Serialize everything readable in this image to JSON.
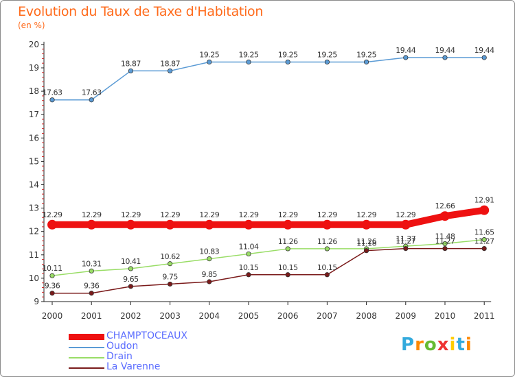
{
  "chart_data": {
    "type": "line",
    "title": "Evolution du Taux de Taxe d'Habitation",
    "ylabel": "(en %)",
    "xlabel": "",
    "categories": [
      "2000",
      "2001",
      "2002",
      "2003",
      "2004",
      "2005",
      "2006",
      "2007",
      "2008",
      "2009",
      "2010",
      "2011"
    ],
    "ylim": [
      9,
      20
    ],
    "yticks": [
      "9",
      "10",
      "11",
      "12",
      "13",
      "14",
      "15",
      "16",
      "17",
      "18",
      "19",
      "20"
    ],
    "grid": false,
    "legend_position": "bottom-left",
    "series": [
      {
        "name": "CHAMPTOCEAUX",
        "color": "#ee1111",
        "thick": true,
        "values": [
          12.29,
          12.29,
          12.29,
          12.29,
          12.29,
          12.29,
          12.29,
          12.29,
          12.29,
          12.29,
          12.66,
          12.91
        ],
        "labels": [
          "12.29",
          "12.29",
          "12.29",
          "12.29",
          "12.29",
          "12.29",
          "12.29",
          "12.29",
          "12.29",
          "12.29",
          "12.66",
          "12.91"
        ]
      },
      {
        "name": "Oudon",
        "color": "#5b9bd5",
        "thick": false,
        "values": [
          17.63,
          17.63,
          18.87,
          18.87,
          19.25,
          19.25,
          19.25,
          19.25,
          19.25,
          19.44,
          19.44,
          19.44
        ],
        "labels": [
          "17.63",
          "17.63",
          "18.87",
          "18.87",
          "19.25",
          "19.25",
          "19.25",
          "19.25",
          "19.25",
          "19.44",
          "19.44",
          "19.44"
        ]
      },
      {
        "name": "Drain",
        "color": "#99dd66",
        "thick": false,
        "values": [
          10.11,
          10.31,
          10.41,
          10.62,
          10.83,
          11.04,
          11.26,
          11.26,
          11.26,
          11.37,
          11.48,
          11.65
        ],
        "labels": [
          "10.11",
          "10.31",
          "10.41",
          "10.62",
          "10.83",
          "11.04",
          "11.26",
          "11.26",
          "11.26",
          "11.37",
          "11.48",
          "11.65"
        ]
      },
      {
        "name": "La Varenne",
        "color": "#7a1a1a",
        "thick": false,
        "values": [
          9.36,
          9.36,
          9.65,
          9.75,
          9.85,
          10.15,
          10.15,
          10.15,
          11.18,
          11.27,
          11.27,
          11.27
        ],
        "labels": [
          "9.36",
          "9.36",
          "9.65",
          "9.75",
          "9.85",
          "10.15",
          "10.15",
          "10.15",
          "11.18",
          "11.27",
          "11.27",
          "11.27"
        ]
      }
    ]
  },
  "logo": {
    "text": "Proxiti",
    "letters": [
      "P",
      "r",
      "o",
      "x",
      "i",
      "t",
      "i"
    ],
    "colors": [
      "#33aadd",
      "#ff8800",
      "#66bb33",
      "#ee3333",
      "#ffcc00",
      "#33aadd",
      "#ff8800"
    ]
  }
}
